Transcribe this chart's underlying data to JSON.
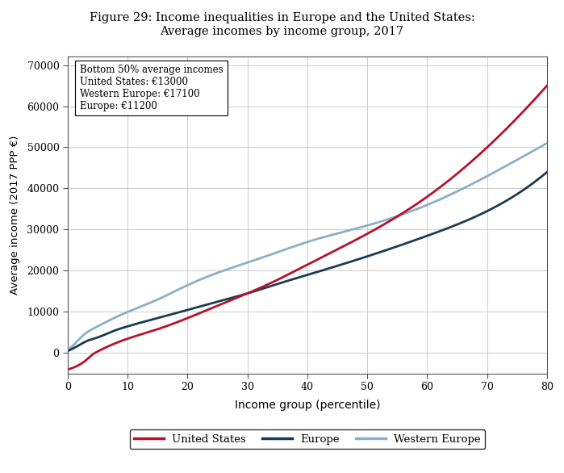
{
  "title_line1": "Figure 29: Income inequalities in Europe and the United States:",
  "title_line2": "Average incomes by income group, 2017",
  "xlabel": "Income group (percentile)",
  "ylabel": "Average income (2017 PPP €)",
  "xlim": [
    0,
    80
  ],
  "ylim": [
    -5000,
    72000
  ],
  "xticks": [
    0,
    10,
    20,
    30,
    40,
    50,
    60,
    70,
    80
  ],
  "yticks": [
    0,
    10000,
    20000,
    30000,
    40000,
    50000,
    60000,
    70000
  ],
  "us_color": "#b5122a",
  "europe_color": "#1c3a54",
  "western_europe_color": "#8aafc8",
  "line_width": 2.0,
  "annotation_text": "Bottom 50% average incomes\nUnited States: €13000\nWestern Europe: €17100\nEurope: €11200",
  "legend_labels": [
    "United States",
    "Europe",
    "Western Europe"
  ],
  "background_color": "#ffffff",
  "grid_color": "#cccccc",
  "us_x": [
    0,
    1,
    2,
    3,
    4,
    5,
    7,
    10,
    15,
    20,
    25,
    30,
    35,
    40,
    50,
    60,
    70,
    80
  ],
  "us_y": [
    -4000,
    -3500,
    -2800,
    -1800,
    -500,
    400,
    1800,
    3500,
    5800,
    8500,
    11500,
    14500,
    17800,
    21500,
    29000,
    38000,
    50000,
    65000
  ],
  "eu_x": [
    0,
    1,
    2,
    3,
    5,
    7,
    10,
    15,
    20,
    25,
    30,
    35,
    40,
    50,
    60,
    70,
    80
  ],
  "eu_y": [
    500,
    1200,
    2000,
    2800,
    3800,
    5000,
    6500,
    8500,
    10500,
    12500,
    14500,
    16800,
    19000,
    23500,
    28500,
    34500,
    44000
  ],
  "we_x": [
    0,
    1,
    2,
    3,
    5,
    7,
    10,
    15,
    20,
    25,
    30,
    35,
    40,
    50,
    60,
    70,
    80
  ],
  "we_y": [
    800,
    2000,
    3500,
    4800,
    6500,
    8000,
    10000,
    13000,
    16500,
    19500,
    22000,
    24500,
    27000,
    31000,
    36000,
    43000,
    51000
  ]
}
